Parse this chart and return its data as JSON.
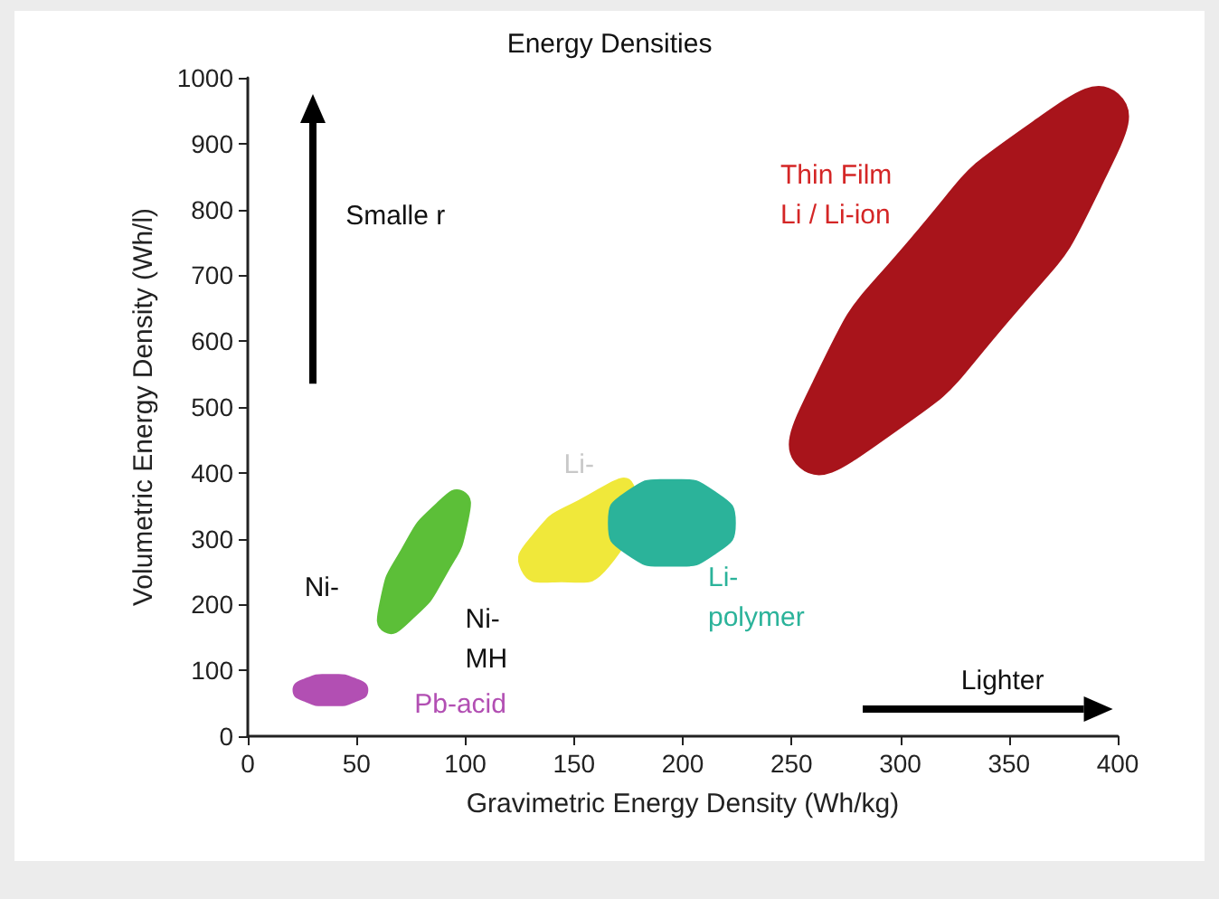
{
  "chart_data": {
    "type": "area",
    "title": "Energy Densities",
    "xlabel": "Gravimetric Energy Density (Wh/kg)",
    "ylabel": "Volumetric Energy Density (Wh/l)",
    "series": [
      {
        "name": "Pb-acid",
        "color": "#b24fb3",
        "x": [
          55,
          50,
          38,
          26,
          21,
          26,
          38,
          50
        ],
        "values": [
          70,
          86,
          93,
          86,
          70,
          54,
          47,
          54
        ]
      },
      {
        "name": "Ni-",
        "color": "#5cbf38",
        "x": [
          99,
          101,
          91,
          75,
          63,
          61,
          71,
          87
        ],
        "values": [
          371,
          327,
          246,
          177,
          159,
          203,
          284,
          353
        ]
      },
      {
        "name": "Li-",
        "color": "#f0e83a",
        "x": [
          166,
          141,
          126,
          131,
          152,
          177
        ],
        "values": [
          259,
          235,
          253,
          304,
          357,
          382
        ]
      },
      {
        "name": "Li-polymer",
        "color": "#2bb39a",
        "x": [
          224,
          215,
          195,
          174,
          166,
          174,
          195,
          215
        ],
        "values": [
          324,
          370,
          389,
          370,
          324,
          278,
          259,
          278
        ]
      },
      {
        "name": "Thin Film Li / Li-ion",
        "color": "#a8141b",
        "x": [
          400,
          394,
          349,
          291,
          254,
          260,
          305,
          363
        ],
        "values": [
          975,
          848,
          629,
          448,
          409,
          537,
          755,
          937
        ]
      }
    ],
    "annotations": [
      "Ni- MH",
      "Smalle r",
      "Lighter"
    ],
    "xlim": [
      0,
      400
    ],
    "xticks": [
      0,
      50,
      100,
      150,
      200,
      250,
      300,
      350,
      400
    ],
    "ylim": [
      0,
      1000
    ],
    "yticks": [
      0,
      100,
      200,
      300,
      400,
      500,
      600,
      700,
      800,
      900,
      1000
    ],
    "grid": false,
    "legend": false
  }
}
